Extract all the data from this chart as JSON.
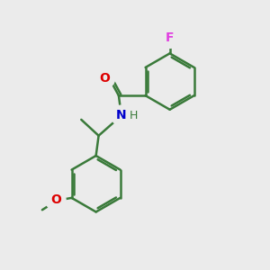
{
  "background_color": "#ebebeb",
  "bond_color": "#3a7a3a",
  "bond_width": 1.8,
  "atom_labels": {
    "F": {
      "color": "#e040e0",
      "fontsize": 10,
      "fontweight": "bold"
    },
    "O": {
      "color": "#dd0000",
      "fontsize": 10,
      "fontweight": "bold"
    },
    "N": {
      "color": "#0000cc",
      "fontsize": 10,
      "fontweight": "bold"
    },
    "H": {
      "color": "#3a7a3a",
      "fontsize": 9,
      "fontweight": "normal"
    }
  },
  "figsize": [
    3.0,
    3.0
  ],
  "dpi": 100,
  "xlim": [
    0,
    10
  ],
  "ylim": [
    0,
    10
  ]
}
